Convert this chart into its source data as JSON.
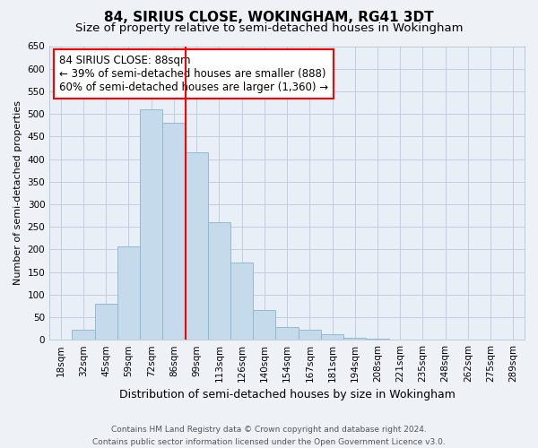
{
  "title": "84, SIRIUS CLOSE, WOKINGHAM, RG41 3DT",
  "subtitle": "Size of property relative to semi-detached houses in Wokingham",
  "xlabel": "Distribution of semi-detached houses by size in Wokingham",
  "ylabel": "Number of semi-detached properties",
  "bar_labels": [
    "18sqm",
    "32sqm",
    "45sqm",
    "59sqm",
    "72sqm",
    "86sqm",
    "99sqm",
    "113sqm",
    "126sqm",
    "140sqm",
    "154sqm",
    "167sqm",
    "181sqm",
    "194sqm",
    "208sqm",
    "221sqm",
    "235sqm",
    "248sqm",
    "262sqm",
    "275sqm",
    "289sqm"
  ],
  "bar_values": [
    0,
    22,
    80,
    207,
    510,
    480,
    415,
    260,
    170,
    65,
    28,
    22,
    13,
    5,
    2,
    0,
    0,
    0,
    0,
    0,
    0
  ],
  "bar_color": "#c5daea",
  "bar_edge_color": "#8ab4cc",
  "property_line_after_bar": 5,
  "property_line_color": "red",
  "annotation_text_line1": "84 SIRIUS CLOSE: 88sqm",
  "annotation_text_line2": "← 39% of semi-detached houses are smaller (888)",
  "annotation_text_line3": "60% of semi-detached houses are larger (1,360) →",
  "annotation_box_color": "white",
  "annotation_box_edge_color": "red",
  "ylim": [
    0,
    650
  ],
  "yticks": [
    0,
    50,
    100,
    150,
    200,
    250,
    300,
    350,
    400,
    450,
    500,
    550,
    600,
    650
  ],
  "footer_line1": "Contains HM Land Registry data © Crown copyright and database right 2024.",
  "footer_line2": "Contains public sector information licensed under the Open Government Licence v3.0.",
  "background_color": "#eef2f7",
  "plot_bg_color": "#e8eff6",
  "grid_color": "#c0cfe0",
  "title_fontsize": 11,
  "subtitle_fontsize": 9.5,
  "xlabel_fontsize": 9,
  "ylabel_fontsize": 8,
  "tick_fontsize": 7.5,
  "footer_fontsize": 6.5,
  "annotation_fontsize": 8.5
}
